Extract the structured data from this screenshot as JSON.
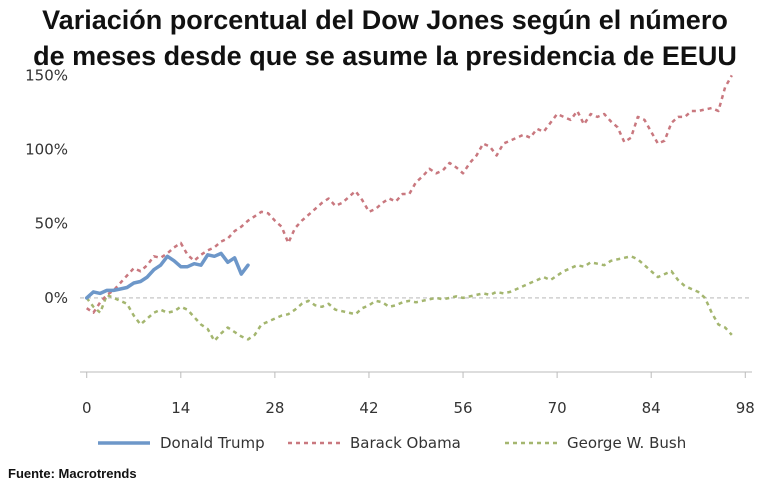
{
  "title_lines": [
    "Variación porcentual del Dow Jones según el número",
    "de meses desde que se asume la presidencia de EEUU"
  ],
  "source": "Fuente: Macrotrends",
  "chart_data": {
    "type": "line",
    "x_ticks": [
      0,
      14,
      28,
      42,
      56,
      70,
      84,
      98
    ],
    "y_ticks": [
      0,
      50,
      100,
      150
    ],
    "y_tick_labels": [
      "0%",
      "50%",
      "100%",
      "150%"
    ],
    "xlim": [
      -1,
      99
    ],
    "ylim": [
      -50,
      155
    ],
    "grid": "zero-line only",
    "legend_position": "bottom",
    "series": [
      {
        "name": "Donald Trump",
        "color": "#6d97c9",
        "style": "solid",
        "x": [
          0,
          1,
          2,
          3,
          4,
          5,
          6,
          7,
          8,
          9,
          10,
          11,
          12,
          13,
          14,
          15,
          16,
          17,
          18,
          19,
          20,
          21,
          22,
          23,
          24
        ],
        "y": [
          0,
          4,
          3,
          5,
          5,
          6,
          7,
          10,
          11,
          14,
          19,
          22,
          28,
          25,
          21,
          21,
          23,
          22,
          29,
          28,
          30,
          24,
          27,
          16,
          22
        ]
      },
      {
        "name": "Barack Obama",
        "color": "#c9787f",
        "style": "dashed",
        "x": [
          0,
          1,
          2,
          3,
          4,
          5,
          6,
          7,
          8,
          9,
          10,
          11,
          12,
          13,
          14,
          15,
          16,
          17,
          18,
          19,
          20,
          21,
          22,
          23,
          24,
          25,
          26,
          27,
          28,
          29,
          30,
          31,
          32,
          33,
          34,
          35,
          36,
          37,
          38,
          39,
          40,
          41,
          42,
          43,
          44,
          45,
          46,
          47,
          48,
          49,
          50,
          51,
          52,
          53,
          54,
          55,
          56,
          57,
          58,
          59,
          60,
          61,
          62,
          63,
          64,
          65,
          66,
          67,
          68,
          69,
          70,
          71,
          72,
          73,
          74,
          75,
          76,
          77,
          78,
          79,
          80,
          81,
          82,
          83,
          84,
          85,
          86,
          87,
          88,
          89,
          90,
          91,
          92,
          93,
          94,
          95,
          96
        ],
        "y": [
          -7,
          -10,
          -3,
          2,
          5,
          10,
          15,
          20,
          18,
          22,
          28,
          27,
          30,
          34,
          37,
          29,
          25,
          29,
          32,
          34,
          38,
          40,
          45,
          48,
          52,
          55,
          58,
          57,
          52,
          48,
          37,
          47,
          52,
          56,
          60,
          64,
          67,
          62,
          64,
          68,
          72,
          66,
          58,
          60,
          64,
          67,
          65,
          70,
          70,
          78,
          82,
          87,
          84,
          86,
          91,
          88,
          84,
          91,
          96,
          104,
          102,
          96,
          104,
          106,
          108,
          110,
          108,
          114,
          112,
          118,
          124,
          122,
          120,
          126,
          117,
          124,
          122,
          124,
          119,
          115,
          105,
          108,
          122,
          120,
          112,
          104,
          106,
          118,
          122,
          122,
          126,
          126,
          127,
          128,
          126,
          142,
          150
        ]
      },
      {
        "name": "George W. Bush",
        "color": "#a4b66f",
        "style": "dashed",
        "x": [
          0,
          1,
          2,
          3,
          4,
          5,
          6,
          7,
          8,
          9,
          10,
          11,
          12,
          13,
          14,
          15,
          16,
          17,
          18,
          19,
          20,
          21,
          22,
          23,
          24,
          25,
          26,
          27,
          28,
          29,
          30,
          31,
          32,
          33,
          34,
          35,
          36,
          37,
          38,
          39,
          40,
          41,
          42,
          43,
          44,
          45,
          46,
          47,
          48,
          49,
          50,
          51,
          52,
          53,
          54,
          55,
          56,
          57,
          58,
          59,
          60,
          61,
          62,
          63,
          64,
          65,
          66,
          67,
          68,
          69,
          70,
          71,
          72,
          73,
          74,
          75,
          76,
          77,
          78,
          79,
          80,
          81,
          82,
          83,
          84,
          85,
          86,
          87,
          88,
          89,
          90,
          91,
          92,
          93,
          94,
          95,
          96
        ],
        "y": [
          0,
          -6,
          -10,
          2,
          0,
          -2,
          -4,
          -12,
          -18,
          -14,
          -10,
          -8,
          -10,
          -9,
          -6,
          -8,
          -13,
          -18,
          -21,
          -29,
          -24,
          -20,
          -23,
          -26,
          -28,
          -25,
          -18,
          -16,
          -14,
          -12,
          -11,
          -8,
          -4,
          -2,
          -5,
          -6,
          -4,
          -8,
          -9,
          -10,
          -11,
          -7,
          -5,
          -2,
          -3,
          -6,
          -5,
          -3,
          -2,
          -3,
          -2,
          -1,
          0,
          -1,
          0,
          1,
          0,
          1,
          2,
          3,
          2,
          4,
          3,
          4,
          6,
          8,
          10,
          12,
          14,
          12,
          15,
          18,
          20,
          22,
          21,
          24,
          23,
          22,
          25,
          26,
          27,
          28,
          26,
          22,
          18,
          14,
          16,
          18,
          12,
          8,
          6,
          4,
          0,
          -10,
          -18,
          -20,
          -25
        ]
      }
    ]
  }
}
